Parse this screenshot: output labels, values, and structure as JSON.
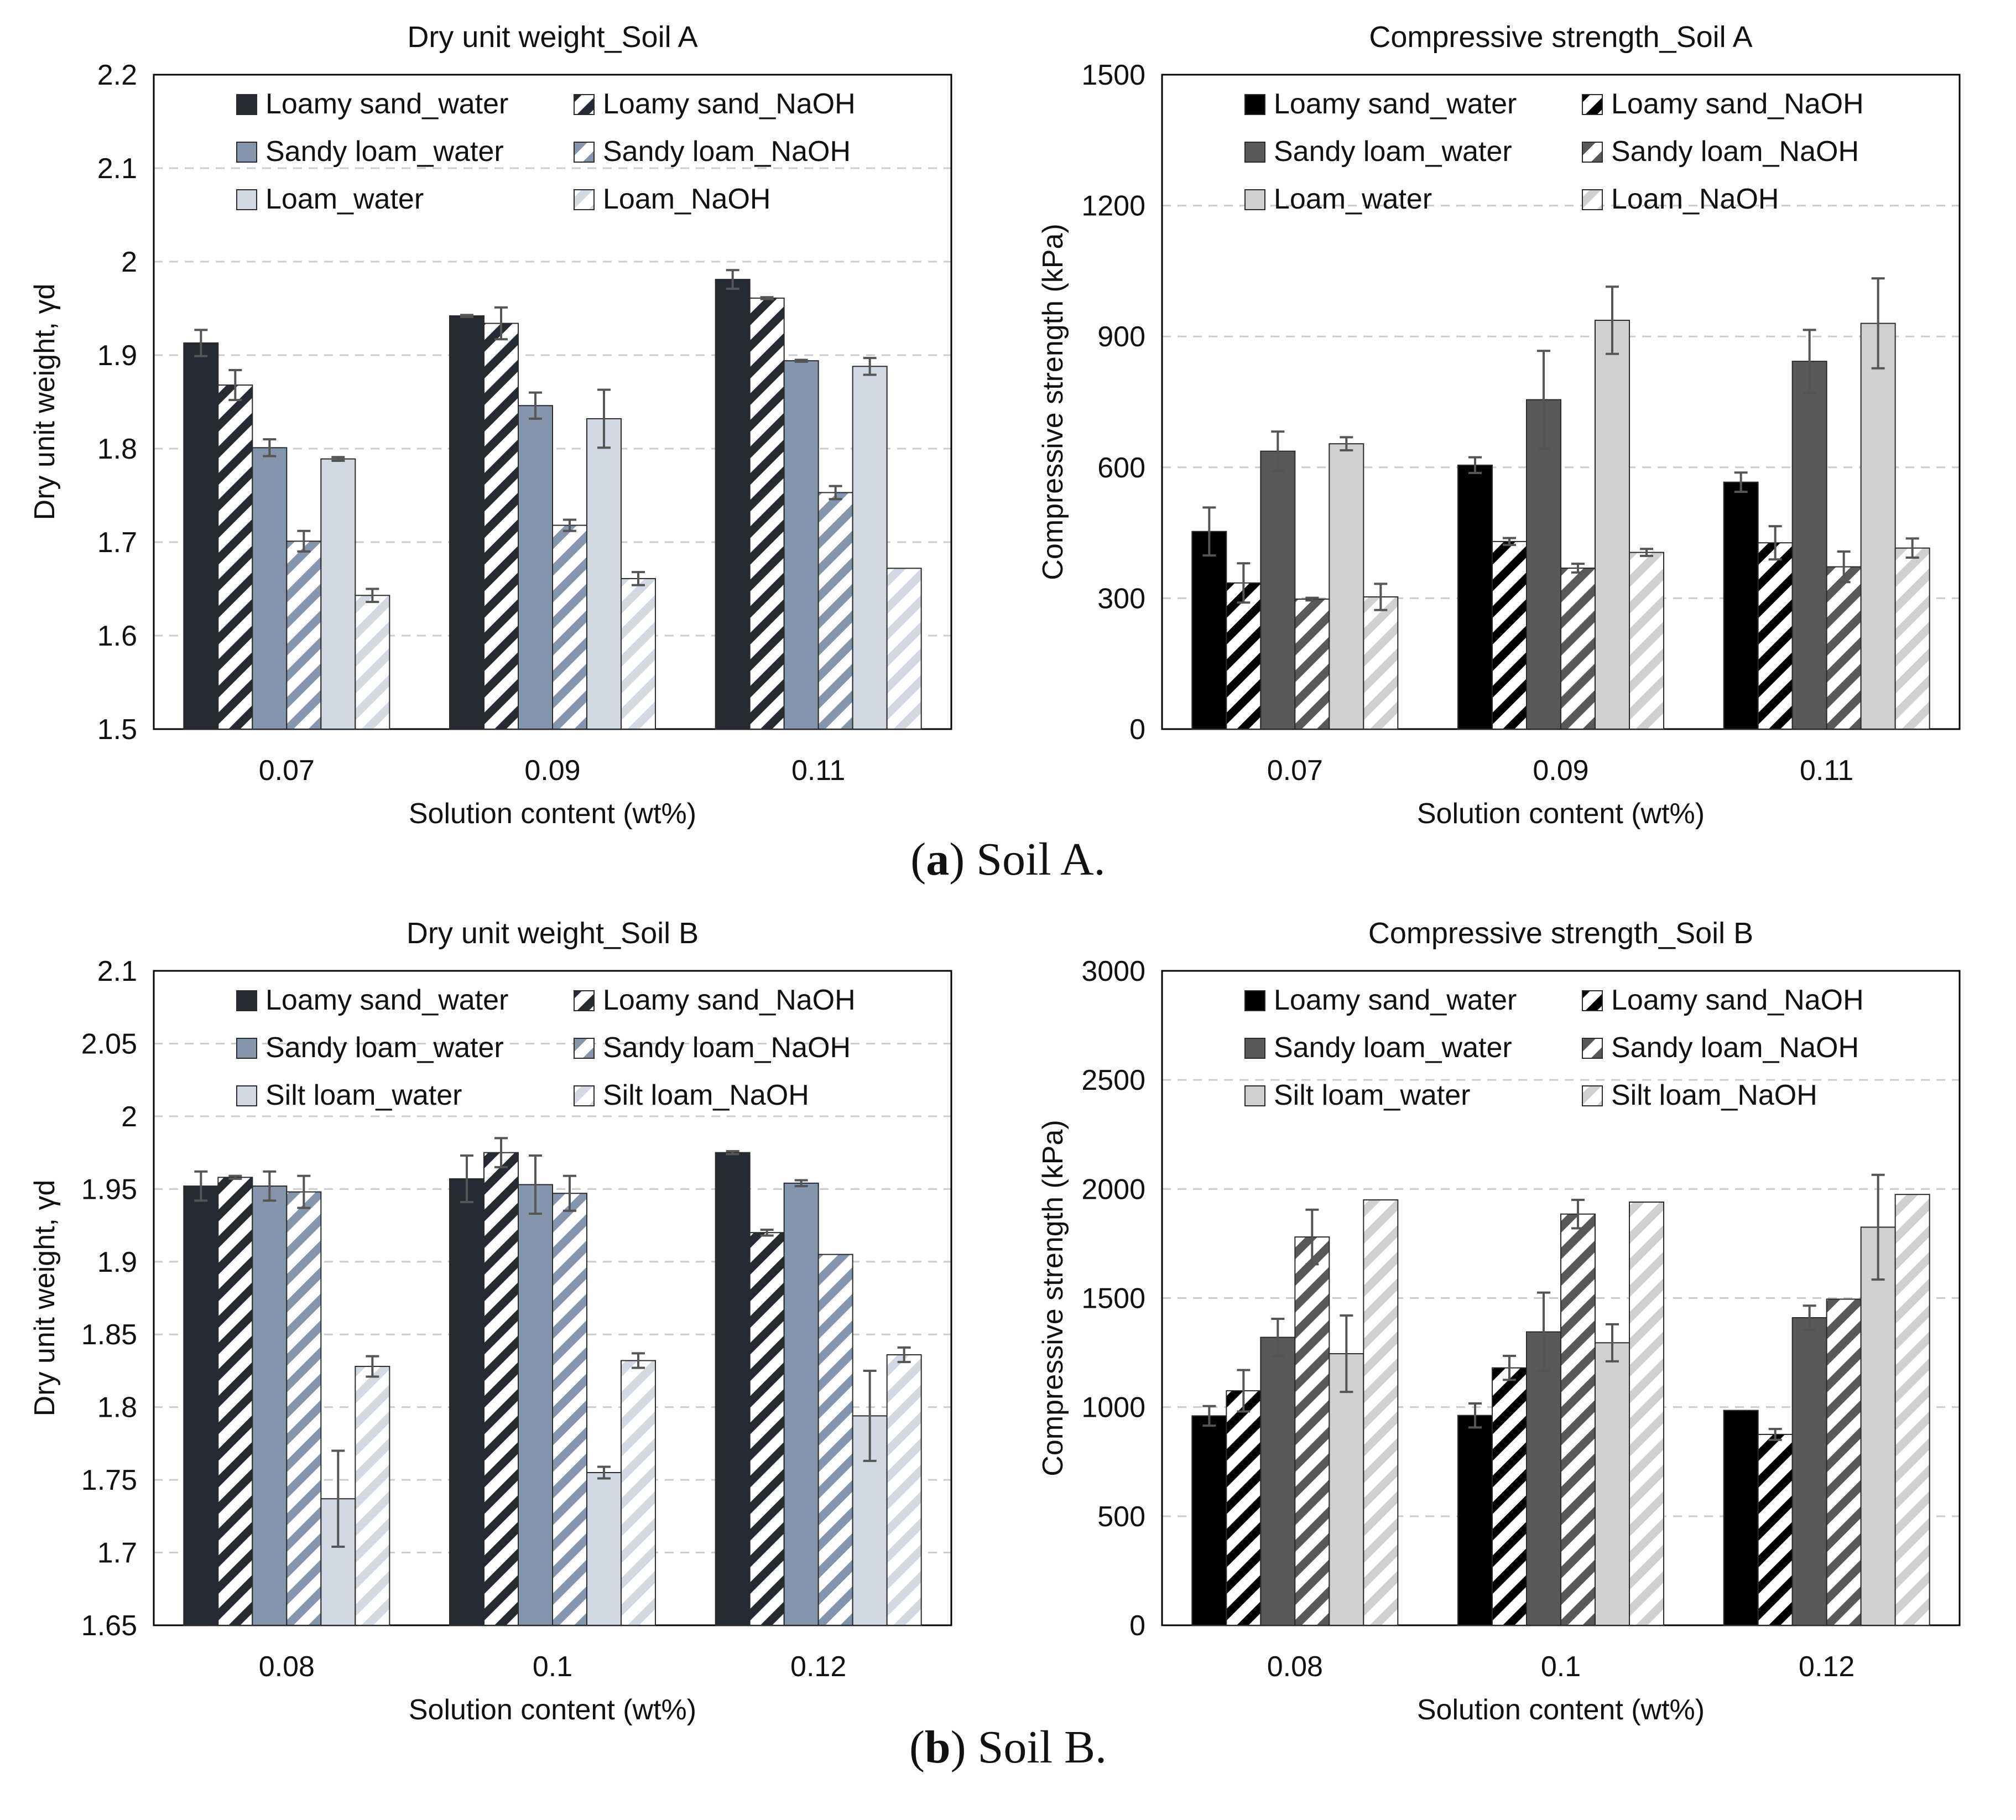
{
  "colors": {
    "dry_loamy_sand": "#252a33",
    "dry_sandy_loam": "#8595ab",
    "dry_loam": "#d3d9e2",
    "cs_loamy_sand": "#000000",
    "cs_sandy_loam": "#595959",
    "cs_loam": "#d0d0d0",
    "gridline": "#cccccc",
    "axis": "#000000",
    "errorbar": "#555555"
  },
  "captions": {
    "a": {
      "letter": "a",
      "text": ") Soil A.",
      "open": "("
    },
    "b": {
      "letter": "b",
      "text": ") Soil B.",
      "open": "("
    }
  },
  "chart_data": [
    {
      "id": "chart-a-dry",
      "type": "bar",
      "title": "Dry unit weight_Soil A",
      "xlabel": "Solution content (wt%)",
      "ylabel": "Dry unit weight, γd",
      "categories": [
        "0.07",
        "0.09",
        "0.11"
      ],
      "ylim": [
        1.5,
        2.2
      ],
      "yticks": [
        "1.5",
        "1.6",
        "1.7",
        "1.8",
        "1.9",
        "2",
        "2.1",
        "2.2"
      ],
      "legend_cols": 2,
      "series": [
        {
          "name": "Loamy sand_water",
          "pattern": "solid",
          "color": "dry_loamy_sand",
          "values": [
            1.913,
            1.942,
            1.981
          ],
          "errors": [
            0.014,
            0.001,
            0.01
          ]
        },
        {
          "name": "Loamy sand_NaOH",
          "pattern": "hatch",
          "color": "dry_loamy_sand",
          "values": [
            1.868,
            1.934,
            1.961
          ],
          "errors": [
            0.016,
            0.017,
            0.001
          ]
        },
        {
          "name": "Sandy loam_water",
          "pattern": "solid",
          "color": "dry_sandy_loam",
          "values": [
            1.801,
            1.846,
            1.894
          ],
          "errors": [
            0.009,
            0.014,
            0.001
          ]
        },
        {
          "name": "Sandy loam_NaOH",
          "pattern": "hatch",
          "color": "dry_sandy_loam",
          "values": [
            1.701,
            1.718,
            1.753
          ],
          "errors": [
            0.011,
            0.006,
            0.007
          ]
        },
        {
          "name": "Loam_water",
          "pattern": "solid",
          "color": "dry_loam",
          "values": [
            1.789,
            1.832,
            1.888
          ],
          "errors": [
            0.002,
            0.031,
            0.009
          ]
        },
        {
          "name": "Loam_NaOH",
          "pattern": "hatch",
          "color": "dry_loam",
          "values": [
            1.643,
            1.661,
            1.672
          ],
          "errors": [
            0.007,
            0.007,
            0.0
          ]
        }
      ]
    },
    {
      "id": "chart-a-cs",
      "type": "bar",
      "title": "Compressive strength_Soil A",
      "xlabel": "Solution content (wt%)",
      "ylabel": "Compressive strength (kPa)",
      "categories": [
        "0.07",
        "0.09",
        "0.11"
      ],
      "ylim": [
        0,
        1500
      ],
      "yticks": [
        "0",
        "300",
        "600",
        "900",
        "1200",
        "1500"
      ],
      "legend_cols": 2,
      "series": [
        {
          "name": "Loamy sand_water",
          "pattern": "solid",
          "color": "cs_loamy_sand",
          "values": [
            453,
            605,
            566
          ],
          "errors": [
            55,
            18,
            22
          ]
        },
        {
          "name": "Loamy sand_NaOH",
          "pattern": "hatch",
          "color": "cs_loamy_sand",
          "values": [
            335,
            430,
            427
          ],
          "errors": [
            45,
            8,
            38
          ]
        },
        {
          "name": "Sandy loam_water",
          "pattern": "solid",
          "color": "cs_sandy_loam",
          "values": [
            637,
            755,
            843
          ],
          "errors": [
            45,
            112,
            72
          ]
        },
        {
          "name": "Sandy loam_NaOH",
          "pattern": "hatch",
          "color": "cs_sandy_loam",
          "values": [
            298,
            369,
            372
          ],
          "errors": [
            3,
            10,
            35
          ]
        },
        {
          "name": "Loam_water",
          "pattern": "solid",
          "color": "cs_loam",
          "values": [
            654,
            937,
            930
          ],
          "errors": [
            15,
            77,
            103
          ]
        },
        {
          "name": "Loam_NaOH",
          "pattern": "hatch",
          "color": "cs_loam",
          "values": [
            303,
            405,
            415
          ],
          "errors": [
            30,
            8,
            22
          ]
        }
      ]
    },
    {
      "id": "chart-b-dry",
      "type": "bar",
      "title": "Dry unit weight_Soil B",
      "xlabel": "Solution content (wt%)",
      "ylabel": "Dry unit weight, γd",
      "categories": [
        "0.08",
        "0.1",
        "0.12"
      ],
      "ylim": [
        1.65,
        2.1
      ],
      "yticks": [
        "1.65",
        "1.7",
        "1.75",
        "1.8",
        "1.85",
        "1.9",
        "1.95",
        "2",
        "2.05",
        "2.1"
      ],
      "legend_cols": 2,
      "series": [
        {
          "name": "Loamy sand_water",
          "pattern": "solid",
          "color": "dry_loamy_sand",
          "values": [
            1.952,
            1.957,
            1.975
          ],
          "errors": [
            0.01,
            0.016,
            0.001
          ]
        },
        {
          "name": "Loamy sand_NaOH",
          "pattern": "hatch",
          "color": "dry_loamy_sand",
          "values": [
            1.958,
            1.975,
            1.92
          ],
          "errors": [
            0.001,
            0.01,
            0.002
          ]
        },
        {
          "name": "Sandy loam_water",
          "pattern": "solid",
          "color": "dry_sandy_loam",
          "values": [
            1.952,
            1.953,
            1.954
          ],
          "errors": [
            0.01,
            0.02,
            0.002
          ]
        },
        {
          "name": "Sandy loam_NaOH",
          "pattern": "hatch",
          "color": "dry_sandy_loam",
          "values": [
            1.948,
            1.947,
            1.905
          ],
          "errors": [
            0.011,
            0.012,
            0.0
          ]
        },
        {
          "name": "Silt loam_water",
          "pattern": "solid",
          "color": "dry_loam",
          "values": [
            1.737,
            1.755,
            1.794
          ],
          "errors": [
            0.033,
            0.004,
            0.031
          ]
        },
        {
          "name": "Silt loam_NaOH",
          "pattern": "hatch",
          "color": "dry_loam",
          "values": [
            1.828,
            1.832,
            1.836
          ],
          "errors": [
            0.007,
            0.005,
            0.005
          ]
        }
      ]
    },
    {
      "id": "chart-b-cs",
      "type": "bar",
      "title": "Compressive strength_Soil B",
      "xlabel": "Solution content (wt%)",
      "ylabel": "Compressive strength (kPa)",
      "categories": [
        "0.08",
        "0.1",
        "0.12"
      ],
      "ylim": [
        0,
        3000
      ],
      "yticks": [
        "0",
        "500",
        "1000",
        "1500",
        "2000",
        "2500",
        "3000"
      ],
      "legend_cols": 2,
      "series": [
        {
          "name": "Loamy sand_water",
          "pattern": "solid",
          "color": "cs_loamy_sand",
          "values": [
            960,
            962,
            985
          ],
          "errors": [
            45,
            55,
            0
          ]
        },
        {
          "name": "Loamy sand_NaOH",
          "pattern": "hatch",
          "color": "cs_loamy_sand",
          "values": [
            1075,
            1180,
            875
          ],
          "errors": [
            95,
            55,
            25
          ]
        },
        {
          "name": "Sandy loam_water",
          "pattern": "solid",
          "color": "cs_sandy_loam",
          "values": [
            1320,
            1345,
            1410
          ],
          "errors": [
            85,
            180,
            55
          ]
        },
        {
          "name": "Sandy loam_NaOH",
          "pattern": "hatch",
          "color": "cs_sandy_loam",
          "values": [
            1780,
            1885,
            1495
          ],
          "errors": [
            125,
            65,
            0
          ]
        },
        {
          "name": "Silt loam_water",
          "pattern": "solid",
          "color": "cs_loam",
          "values": [
            1245,
            1295,
            1825
          ],
          "errors": [
            175,
            85,
            240
          ]
        },
        {
          "name": "Silt loam_NaOH",
          "pattern": "hatch",
          "color": "cs_loam",
          "values": [
            1950,
            1940,
            1975
          ],
          "errors": [
            0,
            0,
            0
          ]
        }
      ]
    }
  ]
}
